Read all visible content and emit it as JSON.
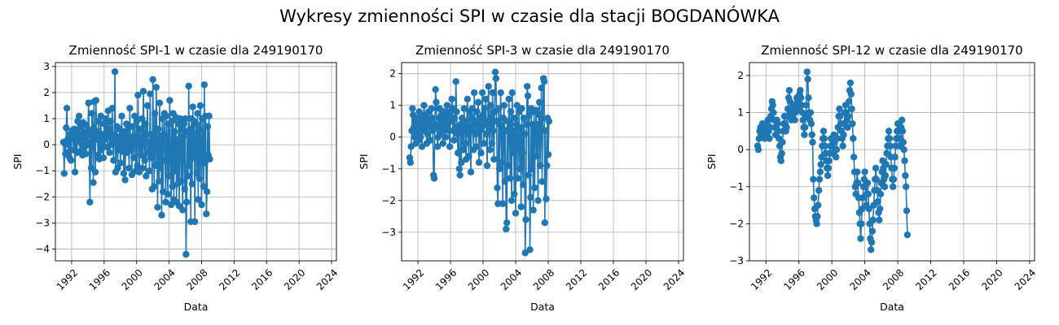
{
  "figure": {
    "suptitle": "Wykresy zmienności SPI w czasie dla stacji BOGDANÓWKA"
  },
  "chart_data": [
    {
      "type": "line",
      "marker": "circle",
      "color": "#1f77b4",
      "title": "Zmienność SPI-1 w czasie dla 249190170",
      "xlabel": "Data",
      "ylabel": "SPI",
      "xlim": [
        1990.0,
        2024.6
      ],
      "ylim": [
        -4.45,
        3.15
      ],
      "xticks": [
        1992,
        1996,
        2000,
        2004,
        2008,
        2012,
        2016,
        2020,
        2024
      ],
      "yticks": [
        -4,
        -3,
        -2,
        -1,
        0,
        1,
        2,
        3
      ],
      "grid": true,
      "x_start": 1991.0,
      "x_step": 0.0833333,
      "values": [
        0.1,
        -1.1,
        0.05,
        -0.35,
        0.65,
        1.4,
        0.2,
        -0.3,
        0.0,
        -0.5,
        0.4,
        -0.6,
        0.25,
        0.55,
        0.3,
        -0.2,
        0.6,
        -1.05,
        0.1,
        0.45,
        -0.3,
        0.9,
        0.35,
        1.1,
        0.2,
        -0.25,
        0.7,
        0.0,
        -0.4,
        0.85,
        0.5,
        -0.1,
        0.3,
        -0.35,
        0.75,
        0.1,
        0.5,
        1.6,
        0.0,
        -2.2,
        0.4,
        -0.9,
        1.2,
        0.6,
        -1.45,
        1.65,
        0.3,
        -1.05,
        1.7,
        0.2,
        0.5,
        -0.4,
        0.9,
        -0.55,
        0.3,
        1.1,
        -0.2,
        0.4,
        0.0,
        -0.5,
        0.8,
        0.2,
        1.0,
        0.35,
        0.6,
        -0.1,
        1.3,
        0.5,
        -0.3,
        0.9,
        0.4,
        0.0,
        1.4,
        0.1,
        -0.6,
        0.3,
        2.8,
        -1.05,
        0.2,
        0.7,
        -0.9,
        0.3,
        -0.2,
        0.6,
        -0.7,
        0.1,
        1.1,
        -0.25,
        0.5,
        -1.1,
        0.2,
        -1.35,
        0.4,
        0.8,
        -0.3,
        0.6,
        0.0,
        -0.9,
        1.4,
        -0.2,
        0.3,
        -1.15,
        0.7,
        0.1,
        -0.5,
        1.1,
        0.2,
        -1.0,
        0.9,
        -0.8,
        1.9,
        0.3,
        -1.05,
        0.6,
        0.0,
        -0.4,
        1.0,
        -0.9,
        2.05,
        0.2,
        -0.6,
        0.8,
        -1.2,
        0.4,
        1.5,
        -0.3,
        0.1,
        -1.0,
        1.95,
        -0.5,
        0.4,
        -1.7,
        2.5,
        0.3,
        -1.6,
        1.2,
        -0.8,
        2.2,
        0.1,
        -2.4,
        0.6,
        -1.4,
        1.6,
        -0.9,
        0.2,
        -2.7,
        1.0,
        -1.8,
        0.4,
        1.2,
        -0.6,
        -2.2,
        1.1,
        0.3,
        -1.9,
        0.8,
        -1.2,
        1.7,
        -0.4,
        -2.3,
        0.9,
        -1.6,
        1.2,
        -2.1,
        0.5,
        -1.0,
        1.05,
        -2.2,
        0.2,
        -1.5,
        0.8,
        -2.35,
        1.0,
        0.1,
        -1.4,
        0.6,
        -2.5,
        0.3,
        0.8,
        -1.7,
        1.0,
        -4.2,
        -2.2,
        0.5,
        -1.2,
        2.25,
        -0.8,
        0.6,
        -2.95,
        1.0,
        -1.5,
        1.45,
        -0.5,
        0.9,
        -2.95,
        0.4,
        0.8,
        -1.1,
        1.2,
        -2.1,
        0.6,
        -1.3,
        1.5,
        -0.3,
        -2.3,
        1.0,
        0.2,
        -1.6,
        2.3,
        -0.7,
        1.1,
        -2.65,
        -1.8,
        0.7,
        -0.4,
        1.1,
        -0.55
      ]
    },
    {
      "type": "line",
      "marker": "circle",
      "color": "#1f77b4",
      "title": "Zmienność SPI-3 w czasie dla 249190170",
      "xlabel": "Data",
      "ylabel": "SPI",
      "xlim": [
        1990.0,
        2024.6
      ],
      "ylim": [
        -3.9,
        2.35
      ],
      "xticks": [
        1992,
        1996,
        2000,
        2004,
        2008,
        2012,
        2016,
        2020,
        2024
      ],
      "yticks": [
        -3,
        -2,
        -1,
        0,
        1,
        2
      ],
      "grid": true,
      "x_start": 1991.0,
      "x_step": 0.0833333,
      "values": [
        -0.65,
        -0.8,
        -0.3,
        0.2,
        0.9,
        0.7,
        0.3,
        0.0,
        0.5,
        -0.2,
        0.1,
        0.6,
        0.3,
        -0.1,
        0.8,
        0.4,
        0.0,
        0.6,
        -0.3,
        0.2,
        0.5,
        1.0,
        0.7,
        0.3,
        0.6,
        -0.2,
        0.1,
        0.4,
        0.8,
        0.5,
        -0.1,
        0.3,
        0.9,
        0.6,
        0.2,
        -1.2,
        -1.3,
        0.4,
        1.5,
        1.1,
        0.3,
        -0.3,
        0.0,
        0.6,
        0.9,
        0.4,
        0.1,
        0.7,
        0.2,
        -0.2,
        0.5,
        0.8,
        0.3,
        0.0,
        0.6,
        1.0,
        0.4,
        0.7,
        0.2,
        -0.3,
        0.8,
        0.5,
        1.2,
        0.9,
        0.2,
        -0.1,
        0.6,
        0.3,
        1.75,
        0.8,
        0.1,
        -0.5,
        0.3,
        -1.0,
        -1.2,
        0.4,
        -0.8,
        0.6,
        0.2,
        -0.4,
        0.9,
        0.3,
        -0.2,
        -0.7,
        0.5,
        1.2,
        0.1,
        -0.6,
        0.8,
        0.3,
        -1.1,
        0.6,
        0.9,
        0.2,
        -0.4,
        1.4,
        0.5,
        0.1,
        -0.3,
        0.8,
        0.4,
        1.1,
        -0.8,
        0.2,
        0.6,
        -0.5,
        0.3,
        1.4,
        0.7,
        -0.2,
        0.9,
        0.4,
        1.2,
        0.1,
        -0.9,
        0.5,
        1.6,
        0.3,
        -0.4,
        1.0,
        0.6,
        -0.2,
        1.4,
        0.2,
        -0.7,
        0.8,
        2.05,
        1.85,
        0.5,
        -1.6,
        -2.1,
        0.9,
        -1.0,
        0.4,
        1.4,
        -0.8,
        0.3,
        -2.1,
        0.6,
        1.0,
        -1.4,
        0.2,
        -2.9,
        -2.7,
        0.5,
        -0.9,
        1.2,
        0.3,
        -1.3,
        0.8,
        -2.0,
        1.4,
        -0.5,
        0.2,
        -1.8,
        0.6,
        -2.4,
        0.4,
        1.0,
        -1.3,
        -0.2,
        0.8,
        -1.0,
        0.3,
        -2.2,
        0.9,
        -0.5,
        -1.5,
        0.6,
        0.1,
        -3.65,
        -2.6,
        0.4,
        1.6,
        1.3,
        -1.2,
        0.7,
        -3.55,
        -1.9,
        0.9,
        -1.0,
        0.4,
        -2.3,
        0.8,
        -1.6,
        0.2,
        0.85,
        -0.6,
        0.4,
        -2.0,
        0.7,
        1.1,
        -0.9,
        0.3,
        1.55,
        -1.4,
        0.6,
        1.85,
        1.75,
        -2.7,
        0.2,
        -1.95,
        -0.9,
        0.6,
        -0.55,
        0.5
      ]
    },
    {
      "type": "line",
      "marker": "circle",
      "color": "#1f77b4",
      "title": "Zmienność SPI-12 w czasie dla 249190170",
      "xlabel": "Data",
      "ylabel": "SPI",
      "xlim": [
        1990.0,
        2024.6
      ],
      "ylim": [
        -3.0,
        2.35
      ],
      "xticks": [
        1992,
        1996,
        2000,
        2004,
        2008,
        2012,
        2016,
        2020,
        2024
      ],
      "yticks": [
        -3,
        -2,
        -1,
        0,
        1,
        2
      ],
      "grid": true,
      "x_start": 1991.0,
      "x_step": 0.0833333,
      "values": [
        0.1,
        0.0,
        0.3,
        0.5,
        0.6,
        0.4,
        0.55,
        0.7,
        0.5,
        0.6,
        0.3,
        0.5,
        0.7,
        0.4,
        0.6,
        0.8,
        0.5,
        0.3,
        0.6,
        0.9,
        1.1,
        1.3,
        1.2,
        1.0,
        0.8,
        0.6,
        0.4,
        0.6,
        0.8,
        0.7,
        0.5,
        0.3,
        0.1,
        -0.2,
        -0.3,
        -0.1,
        0.2,
        0.5,
        0.7,
        0.9,
        0.7,
        0.5,
        0.6,
        0.9,
        1.1,
        1.4,
        1.6,
        1.3,
        1.0,
        0.8,
        1.0,
        0.9,
        1.2,
        1.1,
        0.8,
        1.0,
        1.2,
        1.4,
        1.3,
        1.1,
        1.3,
        1.5,
        1.6,
        1.4,
        1.2,
        1.0,
        0.8,
        0.6,
        0.4,
        0.6,
        0.9,
        1.2,
        2.1,
        1.9,
        1.4,
        1.0,
        0.8,
        1.0,
        0.7,
        0.4,
        0.2,
        -0.8,
        -1.3,
        -1.6,
        -1.8,
        -1.9,
        -2.0,
        -1.8,
        -1.5,
        -1.1,
        -0.8,
        -0.6,
        -0.4,
        -0.2,
        0.1,
        0.3,
        0.5,
        0.3,
        0.1,
        -0.1,
        -0.3,
        -0.5,
        -0.7,
        -0.5,
        -0.3,
        -0.1,
        0.1,
        0.3,
        0.1,
        -0.1,
        0.2,
        0.4,
        0.2,
        0.0,
        -0.2,
        0.0,
        0.3,
        0.6,
        0.9,
        1.1,
        0.9,
        0.7,
        0.5,
        0.3,
        0.1,
        0.4,
        0.7,
        1.0,
        1.2,
        1.0,
        0.8,
        0.6,
        0.9,
        1.3,
        1.6,
        1.8,
        1.5,
        1.1,
        0.7,
        0.3,
        -0.2,
        -0.6,
        -1.0,
        -1.2,
        -0.9,
        -0.6,
        -0.9,
        -1.3,
        -1.7,
        -2.0,
        -2.4,
        -2.0,
        -1.6,
        -1.3,
        -1.0,
        -0.8,
        -0.6,
        -1.0,
        -1.5,
        -1.2,
        -0.9,
        -1.2,
        -1.6,
        -2.0,
        -2.4,
        -2.7,
        -2.5,
        -2.2,
        -1.9,
        -1.5,
        -1.1,
        -0.8,
        -0.5,
        -0.8,
        -1.1,
        -1.4,
        -1.7,
        -1.9,
        -1.6,
        -1.2,
        -0.9,
        -0.6,
        -0.3,
        -0.5,
        -0.8,
        -1.0,
        -0.7,
        -0.4,
        -0.1,
        0.1,
        0.3,
        0.5,
        0.3,
        0.1,
        -0.2,
        -0.5,
        -0.8,
        -1.0,
        -0.8,
        -0.5,
        -0.2,
        0.1,
        0.3,
        0.5,
        0.7,
        0.5,
        0.3,
        0.1,
        0.3,
        0.6,
        0.8,
        0.5,
        0.2,
        0.0,
        -0.3,
        -0.7,
        -1.0,
        -1.65,
        -2.3
      ]
    }
  ]
}
